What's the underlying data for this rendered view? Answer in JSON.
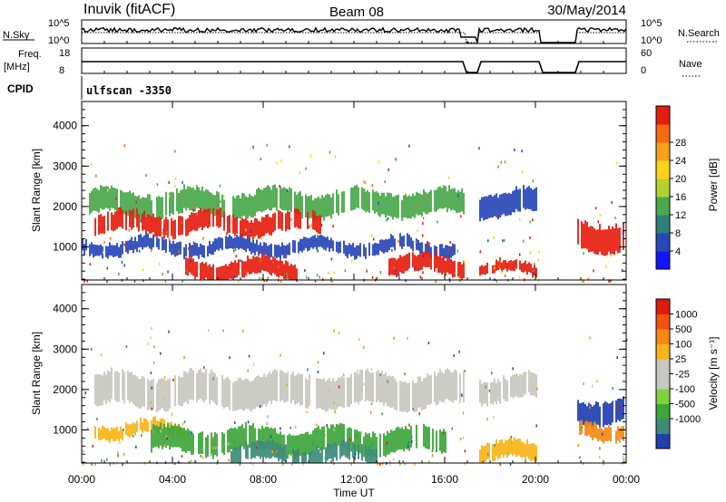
{
  "header": {
    "station": "Inuvik (fitACF)",
    "beam": "Beam 08",
    "date": "30/May/2014"
  },
  "status_panels": {
    "nsky_label": "N.Sky",
    "nsky_ticks": [
      "10^5",
      "10^0"
    ],
    "nsearch_label": "N.Search",
    "nsearch_ticks": [
      "10^5",
      "10^0"
    ],
    "freq_label": "Freq.",
    "freq_unit": "[MHz]",
    "freq_ticks": [
      "18",
      "8"
    ],
    "nave_label": "Nave",
    "nave_ticks": [
      "60",
      "0"
    ],
    "cpid_label": "CPID",
    "cpid_value": "ulfscan -3350"
  },
  "axes": {
    "xlabel": "Time UT",
    "x_ticks": [
      "00:00",
      "04:00",
      "08:00",
      "12:00",
      "16:00",
      "20:00",
      "00:00"
    ],
    "ylabel": "Slant Range [km]",
    "y_ticks": [
      "1000",
      "2000",
      "3000",
      "4000"
    ]
  },
  "colorbars": {
    "power": {
      "label": "Power [dB]",
      "tick_labels": [
        "4",
        "8",
        "12",
        "16",
        "20",
        "24",
        "28"
      ],
      "colors": [
        "#1414ff",
        "#2848b8",
        "#2e7f7a",
        "#4aa84c",
        "#b6d02c",
        "#ffd21a",
        "#f7a21c",
        "#f76a14",
        "#e61e10"
      ]
    },
    "velocity": {
      "label": "Velocity [m s⁻¹]",
      "tick_labels": [
        "1000",
        "500",
        "100",
        "25",
        "-25",
        "-100",
        "-500",
        "-1000"
      ],
      "colors": [
        "#2040b0",
        "#3c8c78",
        "#3ea63c",
        "#7fd43c",
        "#c8c8c0",
        "#c8c8c0",
        "#f8b418",
        "#f48a14",
        "#f2520f",
        "#e01a10"
      ]
    }
  },
  "chart_data": [
    {
      "type": "heatmap",
      "name": "power",
      "xlabel": "Time UT",
      "ylabel": "Slant Range [km]",
      "xlim_hours": [
        0,
        24
      ],
      "ylim": [
        180,
        4600
      ],
      "data_gaps_hours": [
        [
          16.95,
          17.45
        ],
        [
          20.2,
          21.8
        ]
      ],
      "bands": [
        {
          "t": [
            0.2,
            16.8
          ],
          "r": [
            1800,
            2350
          ],
          "level": "green"
        },
        {
          "t": [
            0.5,
            10.5
          ],
          "r": [
            1350,
            1800
          ],
          "level": "red"
        },
        {
          "t": [
            0.0,
            16.5
          ],
          "r": [
            850,
            1150
          ],
          "level": "blue"
        },
        {
          "t": [
            4.5,
            9.5
          ],
          "r": [
            250,
            650
          ],
          "level": "red"
        },
        {
          "t": [
            13.5,
            16.8
          ],
          "r": [
            350,
            750
          ],
          "level": "red"
        },
        {
          "t": [
            17.5,
            20.0
          ],
          "r": [
            320,
            560
          ],
          "level": "red"
        },
        {
          "t": [
            17.5,
            20.0
          ],
          "r": [
            1800,
            2350
          ],
          "level": "blue"
        },
        {
          "t": [
            21.8,
            23.9
          ],
          "r": [
            950,
            1600
          ],
          "level": "red"
        }
      ]
    },
    {
      "type": "heatmap",
      "name": "velocity",
      "xlabel": "Time UT",
      "ylabel": "Slant Range [km]",
      "xlim_hours": [
        0,
        24
      ],
      "ylim": [
        180,
        4600
      ],
      "data_gaps_hours": [
        [
          16.95,
          17.45
        ],
        [
          20.2,
          21.8
        ]
      ],
      "bands": [
        {
          "t": [
            0.5,
            16.8
          ],
          "r": [
            1600,
            2350
          ],
          "v": "-25"
        },
        {
          "t": [
            0.5,
            4.5
          ],
          "r": [
            850,
            1150
          ],
          "v": "-100"
        },
        {
          "t": [
            3.0,
            16.0
          ],
          "r": [
            450,
            1000
          ],
          "v": "100"
        },
        {
          "t": [
            6.5,
            13.0
          ],
          "r": [
            200,
            600
          ],
          "v": "500"
        },
        {
          "t": [
            17.5,
            20.0
          ],
          "r": [
            250,
            650
          ],
          "v": "-100"
        },
        {
          "t": [
            17.5,
            20.0
          ],
          "r": [
            1750,
            2300
          ],
          "v": "-25"
        },
        {
          "t": [
            21.8,
            23.9
          ],
          "r": [
            1200,
            1750
          ],
          "v": "1000"
        },
        {
          "t": [
            21.8,
            23.9
          ],
          "r": [
            800,
            1150
          ],
          "v": "-500"
        }
      ]
    }
  ]
}
